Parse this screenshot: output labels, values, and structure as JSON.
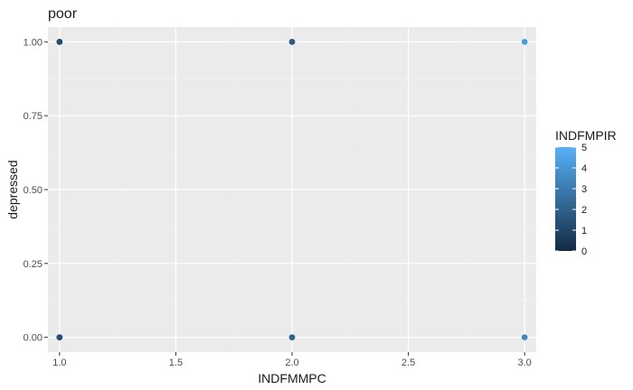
{
  "chart_data": {
    "type": "scatter",
    "title": "poor",
    "xlabel": "INDFMMPC",
    "ylabel": "depressed",
    "xlim": [
      0.95,
      3.05
    ],
    "ylim": [
      -0.05,
      1.05
    ],
    "x_ticks": [
      1.0,
      1.5,
      2.0,
      2.5,
      3.0
    ],
    "x_tick_labels": [
      "1.0",
      "1.5",
      "2.0",
      "2.5",
      "3.0"
    ],
    "y_ticks": [
      0.0,
      0.25,
      0.5,
      0.75,
      1.0
    ],
    "y_tick_labels": [
      "0.00",
      "0.25",
      "0.50",
      "0.75",
      "1.00"
    ],
    "grid": true,
    "legend": {
      "title": "INDFMPIR",
      "type": "colorbar",
      "position": "right",
      "range": [
        0,
        5
      ],
      "ticks": [
        "0",
        "1",
        "2",
        "3",
        "4",
        "5"
      ],
      "color_low": "#132B43",
      "color_high": "#56B1F7"
    },
    "points": [
      {
        "x": 1.0,
        "y": 1.0,
        "color_value": 0.3
      },
      {
        "x": 1.0,
        "y": 1.0,
        "color_value": 0.8
      },
      {
        "x": 1.0,
        "y": 1.0,
        "color_value": 1.2
      },
      {
        "x": 1.0,
        "y": 0.0,
        "color_value": 0.5
      },
      {
        "x": 1.0,
        "y": 0.0,
        "color_value": 1.0
      },
      {
        "x": 1.0,
        "y": 0.0,
        "color_value": 1.3
      },
      {
        "x": 2.0,
        "y": 1.0,
        "color_value": 1.4
      },
      {
        "x": 2.0,
        "y": 1.0,
        "color_value": 1.8
      },
      {
        "x": 2.0,
        "y": 0.0,
        "color_value": 1.6
      },
      {
        "x": 2.0,
        "y": 0.0,
        "color_value": 2.1
      },
      {
        "x": 3.0,
        "y": 1.0,
        "color_value": 4.2
      },
      {
        "x": 3.0,
        "y": 0.0,
        "color_value": 3.4
      }
    ]
  }
}
